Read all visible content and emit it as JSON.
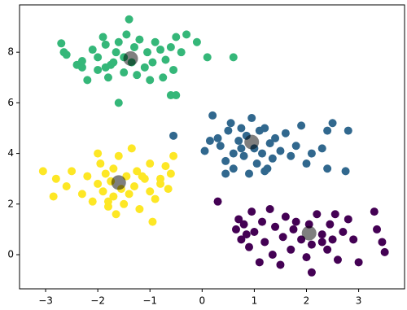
{
  "chart_data": {
    "type": "scatter",
    "xlim": [
      -3.5,
      3.88
    ],
    "ylim": [
      -1.35,
      9.87
    ],
    "xticks": [
      {
        "value": -3,
        "label": "−3"
      },
      {
        "value": -2,
        "label": "−2"
      },
      {
        "value": -1,
        "label": "−1"
      },
      0,
      1,
      2,
      3
    ],
    "yticks": [
      0,
      2,
      4,
      6,
      8
    ],
    "grid": false,
    "series": [
      {
        "color": "#35b779",
        "size": 5,
        "x": [
          -2.7,
          -2.65,
          -2.6,
          -2.4,
          -2.3,
          -2.2,
          -2.0,
          -2.0,
          -1.9,
          -1.85,
          -1.8,
          -1.75,
          -1.7,
          -1.65,
          -1.6,
          -1.5,
          -1.5,
          -1.45,
          -1.4,
          -1.3,
          -1.25,
          -1.2,
          -1.1,
          -1.05,
          -1.0,
          -0.95,
          -0.9,
          -0.8,
          -0.75,
          -0.7,
          -0.6,
          -0.55,
          -0.5,
          -0.4,
          -0.3,
          -0.1,
          0.1,
          -1.6,
          -0.6,
          -0.5,
          -2.1,
          -1.35,
          0.6,
          -2.3,
          -1.85
        ],
        "y": [
          8.35,
          8.0,
          7.9,
          7.5,
          7.4,
          6.9,
          7.3,
          7.8,
          8.6,
          8.3,
          7.0,
          7.5,
          7.6,
          8.0,
          8.4,
          7.2,
          7.8,
          8.7,
          9.3,
          8.2,
          7.1,
          8.5,
          7.4,
          8.0,
          6.9,
          7.6,
          8.4,
          8.1,
          7.0,
          7.7,
          8.2,
          7.3,
          8.6,
          8.0,
          8.7,
          8.4,
          7.8,
          6.0,
          6.3,
          6.3,
          8.1,
          7.6,
          7.8,
          7.65,
          7.4
        ]
      },
      {
        "color": "#31688e",
        "size": 5,
        "x": [
          -0.55,
          0.05,
          0.2,
          0.3,
          0.35,
          0.45,
          0.5,
          0.55,
          0.6,
          0.6,
          0.7,
          0.75,
          0.8,
          0.85,
          0.9,
          0.95,
          1.0,
          1.05,
          1.1,
          1.15,
          1.2,
          1.25,
          1.3,
          1.35,
          1.4,
          1.5,
          1.6,
          1.7,
          1.8,
          1.9,
          2.0,
          2.1,
          2.3,
          2.4,
          2.4,
          2.5,
          2.75,
          2.8,
          0.45,
          0.15,
          0.75,
          1.2
        ],
        "y": [
          4.7,
          4.1,
          5.5,
          4.6,
          4.3,
          3.7,
          4.9,
          5.2,
          3.4,
          4.0,
          4.5,
          5.0,
          3.9,
          4.7,
          3.2,
          5.4,
          4.2,
          3.6,
          4.9,
          4.0,
          5.0,
          3.4,
          4.4,
          3.8,
          4.6,
          4.1,
          4.8,
          3.9,
          4.3,
          5.1,
          3.6,
          4.0,
          4.2,
          4.9,
          3.4,
          5.2,
          3.3,
          4.9,
          3.2,
          4.5,
          4.2,
          3.3
        ]
      },
      {
        "color": "#fde725",
        "size": 5,
        "x": [
          -3.05,
          -2.85,
          -2.8,
          -2.6,
          -2.5,
          -2.3,
          -2.2,
          -2.1,
          -2.0,
          -1.95,
          -1.9,
          -1.85,
          -1.8,
          -1.75,
          -1.7,
          -1.7,
          -1.65,
          -1.6,
          -1.55,
          -1.5,
          -1.45,
          -1.4,
          -1.35,
          -1.3,
          -1.25,
          -1.2,
          -1.1,
          -1.0,
          -1.0,
          -0.95,
          -0.9,
          -0.8,
          -0.7,
          -0.6,
          -0.55,
          -0.8,
          -1.15,
          -2.0,
          -0.65,
          -1.8
        ],
        "y": [
          3.3,
          2.3,
          3.0,
          2.7,
          3.3,
          2.4,
          3.1,
          2.1,
          2.8,
          3.6,
          2.5,
          3.2,
          1.9,
          2.9,
          3.4,
          2.3,
          1.6,
          3.9,
          2.6,
          2.0,
          3.1,
          2.4,
          4.2,
          2.7,
          3.3,
          1.8,
          3.0,
          2.5,
          3.6,
          1.3,
          2.2,
          3.0,
          3.5,
          3.2,
          3.9,
          2.8,
          3.1,
          4.0,
          2.6,
          2.1
        ]
      },
      {
        "color": "#440154",
        "size": 5,
        "x": [
          0.3,
          0.65,
          0.7,
          0.75,
          0.8,
          0.85,
          0.9,
          0.95,
          1.0,
          1.1,
          1.15,
          1.2,
          1.3,
          1.35,
          1.4,
          1.5,
          1.55,
          1.6,
          1.7,
          1.75,
          1.8,
          1.9,
          2.0,
          2.05,
          2.1,
          2.2,
          2.3,
          2.4,
          2.45,
          2.5,
          2.55,
          2.6,
          2.7,
          2.8,
          2.9,
          3.0,
          3.35,
          3.3,
          3.45,
          3.5,
          2.1,
          2.3
        ],
        "y": [
          2.1,
          1.0,
          1.4,
          0.6,
          1.2,
          0.8,
          0.3,
          1.7,
          0.9,
          -0.3,
          1.3,
          0.5,
          1.8,
          0.0,
          1.1,
          -0.4,
          0.7,
          1.5,
          0.2,
          1.0,
          1.3,
          0.6,
          -0.1,
          1.2,
          0.4,
          1.6,
          0.8,
          0.2,
          1.2,
          0.6,
          1.6,
          -0.2,
          0.9,
          1.4,
          0.6,
          -0.3,
          1.0,
          1.7,
          0.5,
          0.1,
          -0.7,
          0.5
        ]
      },
      {
        "color": "#000000",
        "opacity": 0.5,
        "size": 9,
        "x": [
          -1.37,
          0.95,
          -1.6,
          2.05
        ],
        "y": [
          7.75,
          4.45,
          2.85,
          0.85
        ]
      }
    ]
  }
}
